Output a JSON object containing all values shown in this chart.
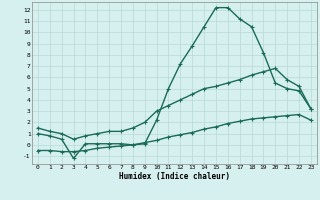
{
  "xlabel": "Humidex (Indice chaleur)",
  "x_ticks": [
    0,
    1,
    2,
    3,
    4,
    5,
    6,
    7,
    8,
    9,
    10,
    11,
    12,
    13,
    14,
    15,
    16,
    17,
    18,
    19,
    20,
    21,
    22,
    23
  ],
  "y_ticks": [
    -1,
    0,
    1,
    2,
    3,
    4,
    5,
    6,
    7,
    8,
    9,
    10,
    11,
    12
  ],
  "xlim": [
    -0.5,
    23.5
  ],
  "ylim": [
    -1.7,
    12.7
  ],
  "line1_x": [
    0,
    1,
    2,
    3,
    4,
    5,
    6,
    7,
    8,
    9,
    10,
    11,
    12,
    13,
    14,
    15,
    16,
    17,
    18,
    19,
    20,
    21,
    22,
    23
  ],
  "line1_y": [
    1.0,
    0.8,
    0.5,
    -1.2,
    0.1,
    0.1,
    0.1,
    0.1,
    0.0,
    0.1,
    2.2,
    5.0,
    7.2,
    8.8,
    10.5,
    12.2,
    12.2,
    11.2,
    10.5,
    8.2,
    5.5,
    5.0,
    4.8,
    3.2
  ],
  "line2_x": [
    0,
    1,
    2,
    3,
    4,
    5,
    6,
    7,
    8,
    9,
    10,
    11,
    12,
    13,
    14,
    15,
    16,
    17,
    18,
    19,
    20,
    21,
    22,
    23
  ],
  "line2_y": [
    1.5,
    1.2,
    1.0,
    0.5,
    0.8,
    1.0,
    1.2,
    1.2,
    1.5,
    2.0,
    3.0,
    3.5,
    4.0,
    4.5,
    5.0,
    5.2,
    5.5,
    5.8,
    6.2,
    6.5,
    6.8,
    5.8,
    5.2,
    3.2
  ],
  "line3_x": [
    0,
    1,
    2,
    3,
    4,
    5,
    6,
    7,
    8,
    9,
    10,
    11,
    12,
    13,
    14,
    15,
    16,
    17,
    18,
    19,
    20,
    21,
    22,
    23
  ],
  "line3_y": [
    -0.5,
    -0.5,
    -0.6,
    -0.6,
    -0.5,
    -0.3,
    -0.2,
    -0.1,
    0.0,
    0.2,
    0.4,
    0.7,
    0.9,
    1.1,
    1.4,
    1.6,
    1.9,
    2.1,
    2.3,
    2.4,
    2.5,
    2.6,
    2.7,
    2.2
  ],
  "line_color": "#1a6b5a",
  "bg_color": "#d6f0ef",
  "grid_color": "#b8d8d5",
  "marker": "+"
}
